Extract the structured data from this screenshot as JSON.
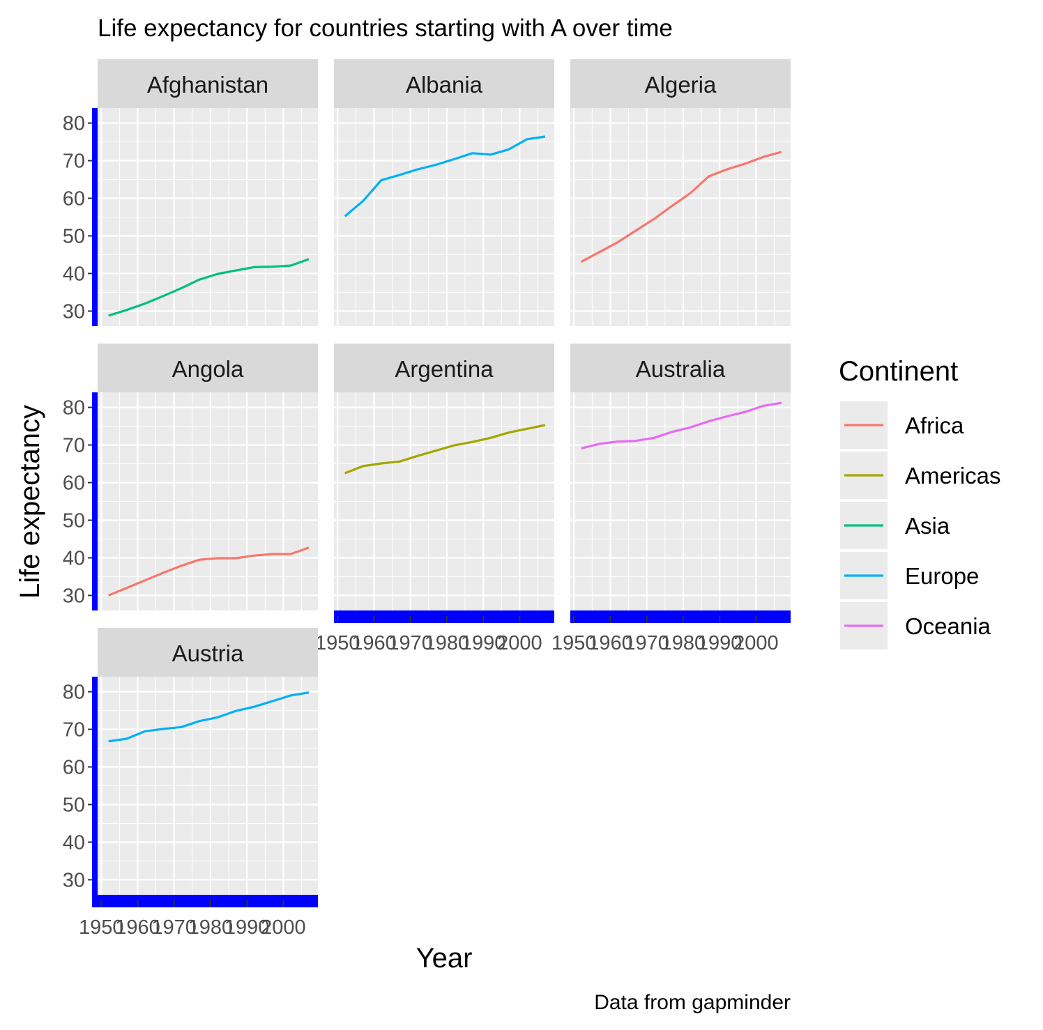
{
  "chart_data": {
    "type": "line",
    "title": "Life expectancy for countries starting with A over time",
    "xlabel": "Year",
    "ylabel": "Life expectancy",
    "caption": "Data from gapminder",
    "x": [
      1952,
      1957,
      1962,
      1967,
      1972,
      1977,
      1982,
      1987,
      1992,
      1997,
      2002,
      2007
    ],
    "xlim": [
      1949,
      2009.5
    ],
    "ylim": [
      26,
      84
    ],
    "x_ticks": [
      1950,
      1960,
      1970,
      1980,
      1990,
      2000
    ],
    "x_tick_labels": [
      "1950",
      "1960",
      "1970",
      "1980",
      "1990",
      "2000"
    ],
    "y_ticks": [
      30,
      40,
      50,
      60,
      70,
      80
    ],
    "y_tick_labels": [
      "30",
      "40",
      "50",
      "60",
      "70",
      "80"
    ],
    "grid": true,
    "legend_position": "right",
    "legend": {
      "title": "Continent",
      "entries": [
        {
          "label": "Africa",
          "color": "#F8766D"
        },
        {
          "label": "Americas",
          "color": "#A3A500"
        },
        {
          "label": "Asia",
          "color": "#00BF7D"
        },
        {
          "label": "Europe",
          "color": "#00B0F6"
        },
        {
          "label": "Oceania",
          "color": "#E76BF3"
        }
      ]
    },
    "series": [
      {
        "name": "Afghanistan",
        "continent": "Asia",
        "color": "#00BF7D",
        "values": [
          28.8,
          30.3,
          32.0,
          34.0,
          36.1,
          38.4,
          39.9,
          40.8,
          41.7,
          41.8,
          42.1,
          43.8
        ]
      },
      {
        "name": "Albania",
        "continent": "Europe",
        "color": "#00B0F6",
        "values": [
          55.2,
          59.3,
          64.8,
          66.2,
          67.7,
          68.9,
          70.4,
          72.0,
          71.6,
          73.0,
          75.7,
          76.4
        ]
      },
      {
        "name": "Algeria",
        "continent": "Africa",
        "color": "#F8766D",
        "values": [
          43.1,
          45.7,
          48.3,
          51.4,
          54.5,
          58.0,
          61.4,
          65.8,
          67.7,
          69.2,
          71.0,
          72.3
        ]
      },
      {
        "name": "Angola",
        "continent": "Africa",
        "color": "#F8766D",
        "values": [
          30.0,
          32.0,
          34.0,
          36.0,
          37.9,
          39.5,
          39.9,
          39.9,
          40.6,
          41.0,
          41.0,
          42.7
        ]
      },
      {
        "name": "Argentina",
        "continent": "Americas",
        "color": "#A3A500",
        "values": [
          62.5,
          64.4,
          65.1,
          65.6,
          67.1,
          68.5,
          69.9,
          70.8,
          71.9,
          73.3,
          74.3,
          75.3
        ]
      },
      {
        "name": "Australia",
        "continent": "Oceania",
        "color": "#E76BF3",
        "values": [
          69.1,
          70.3,
          70.9,
          71.1,
          71.9,
          73.5,
          74.7,
          76.3,
          77.6,
          78.8,
          80.4,
          81.2
        ]
      },
      {
        "name": "Austria",
        "continent": "Europe",
        "color": "#00B0F6",
        "values": [
          66.8,
          67.5,
          69.5,
          70.1,
          70.6,
          72.2,
          73.2,
          74.9,
          76.0,
          77.5,
          79.0,
          79.8
        ]
      }
    ]
  }
}
